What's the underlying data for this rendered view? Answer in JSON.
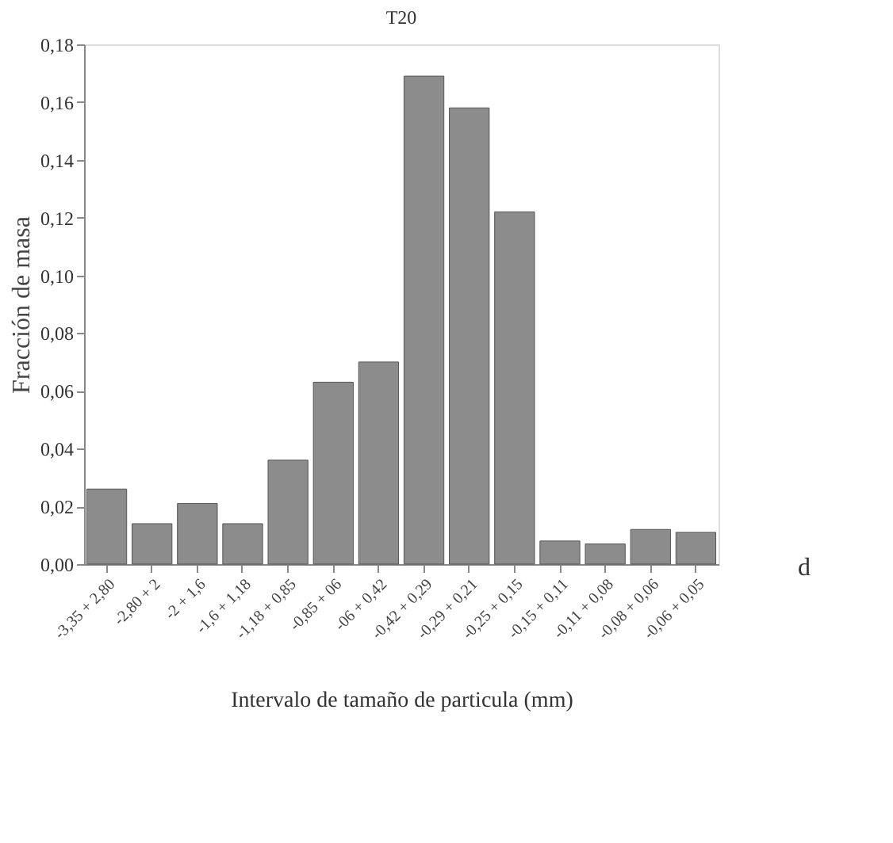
{
  "chart_data": {
    "type": "bar",
    "title": "T20",
    "xlabel": "Intervalo de tamaño de particula (mm)",
    "ylabel": "Fracción de masa",
    "categories": [
      "-3,35 + 2,80",
      "-2,80 + 2",
      "-2 + 1,6",
      "-1,6 + 1,18",
      "-1,18 + 0,85",
      "-0,85 + 06",
      "-06 + 0,42",
      "-0,42 + 0,29",
      "-0,29 + 0,21",
      "-0,25 + 0,15",
      "-0,15 + 0,11",
      "-0,11 + 0,08",
      "-0,08 + 0,06",
      "-0,06 + 0,05"
    ],
    "values": [
      0.026,
      0.014,
      0.021,
      0.014,
      0.036,
      0.063,
      0.07,
      0.169,
      0.158,
      0.122,
      0.008,
      0.007,
      0.012,
      0.011
    ],
    "color": "#8c8c8c",
    "ylim": [
      0,
      0.18
    ],
    "yticks": [
      {
        "value": 0,
        "label": "0,00"
      },
      {
        "value": 0.02,
        "label": "0,02"
      },
      {
        "value": 0.04,
        "label": "0,04"
      },
      {
        "value": 0.06,
        "label": "0,06"
      },
      {
        "value": 0.08,
        "label": "0,08"
      },
      {
        "value": 0.1,
        "label": "0,10"
      },
      {
        "value": 0.12,
        "label": "0,12"
      },
      {
        "value": 0.14,
        "label": "0,14"
      },
      {
        "value": 0.16,
        "label": "0,16"
      },
      {
        "value": 0.18,
        "label": "0,18"
      }
    ],
    "annotations": [
      "d"
    ],
    "grid": false
  }
}
